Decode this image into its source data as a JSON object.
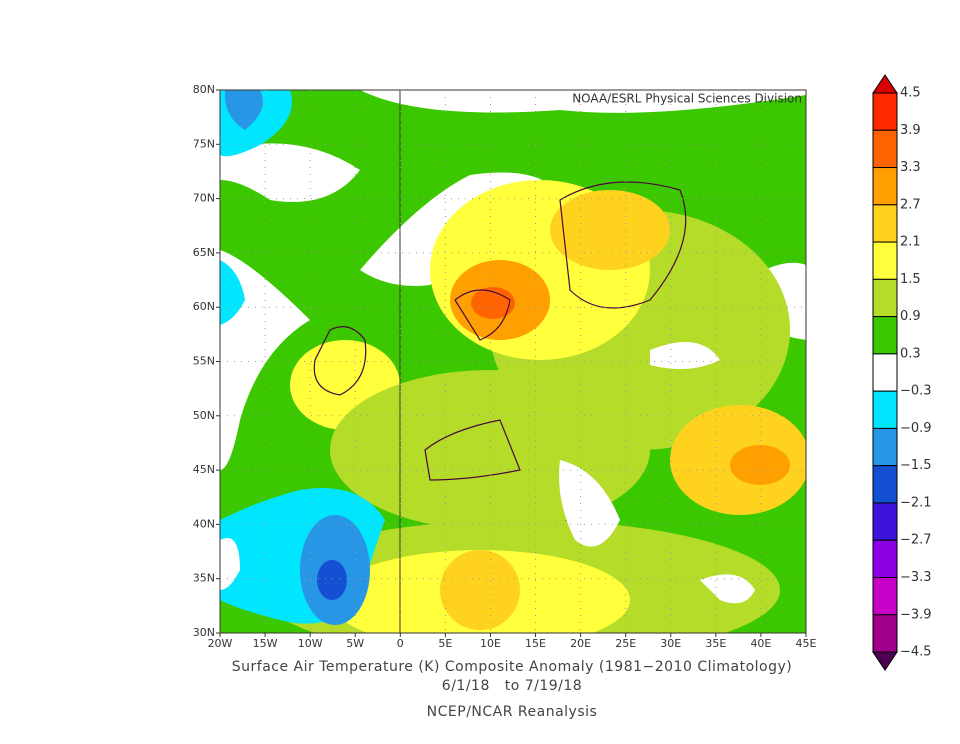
{
  "header": {
    "credit": "NOAA/ESRL Physical Sciences Division"
  },
  "map": {
    "lat_labels": [
      "80N",
      "75N",
      "70N",
      "65N",
      "60N",
      "55N",
      "50N",
      "45N",
      "40N",
      "35N",
      "30N"
    ],
    "lon_labels": [
      "20W",
      "15W",
      "10W",
      "5W",
      "0",
      "5E",
      "10E",
      "15E",
      "20E",
      "25E",
      "30E",
      "35E",
      "40E",
      "45E"
    ]
  },
  "colorbar": {
    "labels": [
      "4.5",
      "3.9",
      "3.3",
      "2.7",
      "2.1",
      "1.5",
      "0.9",
      "0.3",
      "−0.3",
      "−0.9",
      "−1.5",
      "−2.1",
      "−2.7",
      "−3.3",
      "−3.9",
      "−4.5"
    ],
    "colors": [
      "#d80000",
      "#ff2800",
      "#ff6400",
      "#ffa000",
      "#ffd21e",
      "#ffff3c",
      "#b4dc28",
      "#3cc800",
      "#ffffff",
      "#00e6ff",
      "#2896e6",
      "#1450d2",
      "#3c14dc",
      "#8c00e6",
      "#c800c8",
      "#a0008c",
      "#500050"
    ]
  },
  "caption": {
    "title": "Surface Air Temperature (K) Composite Anomaly (1981−2010 Climatology)",
    "dates": "6/1/18   to 7/19/18",
    "source": "NCEP/NCAR Reanalysis"
  }
}
